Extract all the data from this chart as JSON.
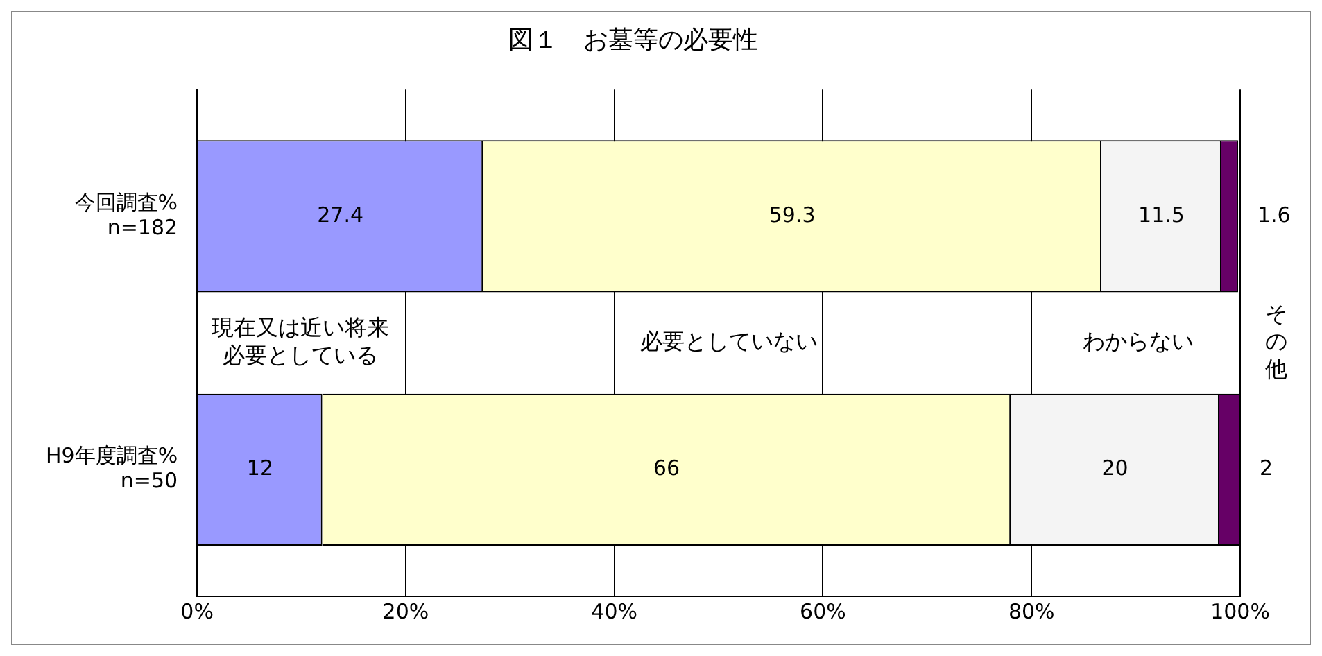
{
  "chart_data": {
    "type": "bar",
    "orientation": "horizontal",
    "stacked": true,
    "title": "図１　お墓等の必要性",
    "categories": [
      "今回調査%\nn=182",
      "H9年度調査%\nn=50"
    ],
    "series": [
      {
        "name": "現在又は近い将来必要としている",
        "color": "#9999ff",
        "values": [
          27.4,
          12
        ]
      },
      {
        "name": "必要としていない",
        "color": "#ffffcc",
        "values": [
          59.3,
          66
        ]
      },
      {
        "name": "わからない",
        "color": "#f4f4f4",
        "values": [
          11.5,
          20
        ]
      },
      {
        "name": "その他",
        "color": "#660066",
        "values": [
          1.6,
          2
        ]
      }
    ],
    "xlim": [
      0,
      100
    ],
    "xticks": [
      {
        "value": 0,
        "label": "0%"
      },
      {
        "value": 20,
        "label": "20%"
      },
      {
        "value": 40,
        "label": "40%"
      },
      {
        "value": 60,
        "label": "60%"
      },
      {
        "value": 80,
        "label": "80%"
      },
      {
        "value": 100,
        "label": "100%"
      }
    ],
    "grid": "x",
    "legend": false,
    "data_labels": true
  }
}
